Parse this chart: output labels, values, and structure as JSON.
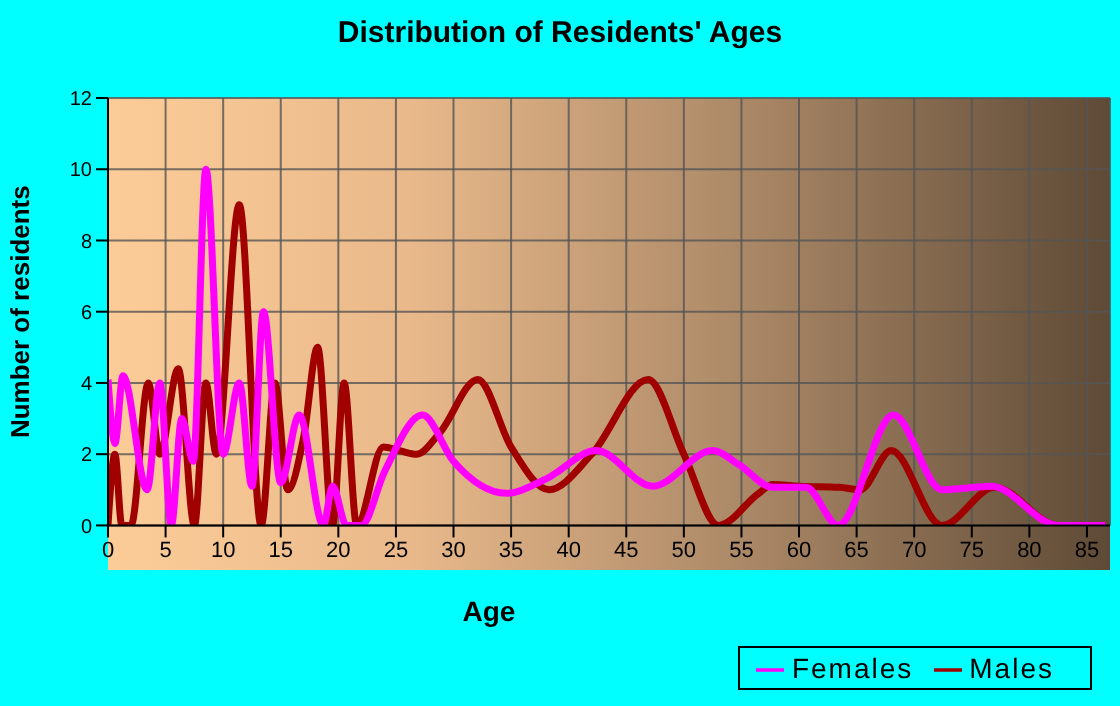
{
  "chart_data": {
    "type": "line",
    "title": "Distribution of Residents' Ages",
    "xlabel": "Age",
    "ylabel": "Number of residents",
    "xlim": [
      0,
      87
    ],
    "xticks": [
      0,
      5,
      10,
      15,
      20,
      25,
      30,
      35,
      40,
      45,
      50,
      55,
      60,
      65,
      70,
      75,
      80,
      85
    ],
    "ylim": [
      0,
      12
    ],
    "yticks": [
      0,
      2,
      4,
      6,
      8,
      10,
      12
    ],
    "grid": true,
    "legend": "bottom right",
    "marker": "none",
    "line_style": "solid",
    "series": [
      {
        "name": "Males",
        "color": "#a00000",
        "x": [
          0,
          0.6,
          1.2,
          2,
          3.5,
          4.5,
          6.1,
          7.5,
          8.5,
          9.4,
          11.4,
          13.3,
          14.5,
          15.6,
          17,
          18.2,
          19.5,
          20.5,
          21.6,
          23.9,
          25.3,
          26.8,
          28.8,
          32.1,
          35,
          38.3,
          42,
          46.9,
          50,
          53,
          56.5,
          57.7,
          60,
          63.5,
          65.3,
          68,
          72.4,
          77,
          82.5,
          86.6
        ],
        "values": [
          0,
          2,
          0,
          0,
          4,
          2,
          4.4,
          0,
          4,
          2,
          9,
          0,
          4,
          1,
          2.5,
          5,
          0,
          4,
          0,
          2.2,
          2.1,
          2,
          2.6,
          4.1,
          2.2,
          1,
          2,
          4.1,
          2,
          0,
          0.9,
          1.15,
          1.1,
          1.07,
          1,
          2.1,
          0,
          1.07,
          0,
          0
        ]
      },
      {
        "name": "Females",
        "color": "#ff00ff",
        "x": [
          0,
          0.6,
          1.3,
          3.4,
          4.5,
          5.5,
          6.4,
          7.4,
          8.5,
          10,
          11.4,
          12.5,
          13.5,
          15,
          16.6,
          18.7,
          19.5,
          20.7,
          22,
          24,
          27.3,
          30,
          34.6,
          38,
          42.4,
          47.3,
          52.5,
          54.8,
          57.7,
          60.6,
          63.4,
          68.2,
          72.4,
          76.7,
          82.5,
          86.6
        ],
        "values": [
          4.1,
          2.3,
          4.2,
          1,
          4,
          0,
          3,
          1.8,
          10,
          2,
          4,
          1.1,
          6,
          1.2,
          3.1,
          0,
          1.1,
          0,
          0,
          1.5,
          3.1,
          1.8,
          0.9,
          1.3,
          2.1,
          1.1,
          2.1,
          1.7,
          1.07,
          1.07,
          0,
          3.1,
          1,
          1.1,
          0,
          0
        ]
      }
    ]
  }
}
